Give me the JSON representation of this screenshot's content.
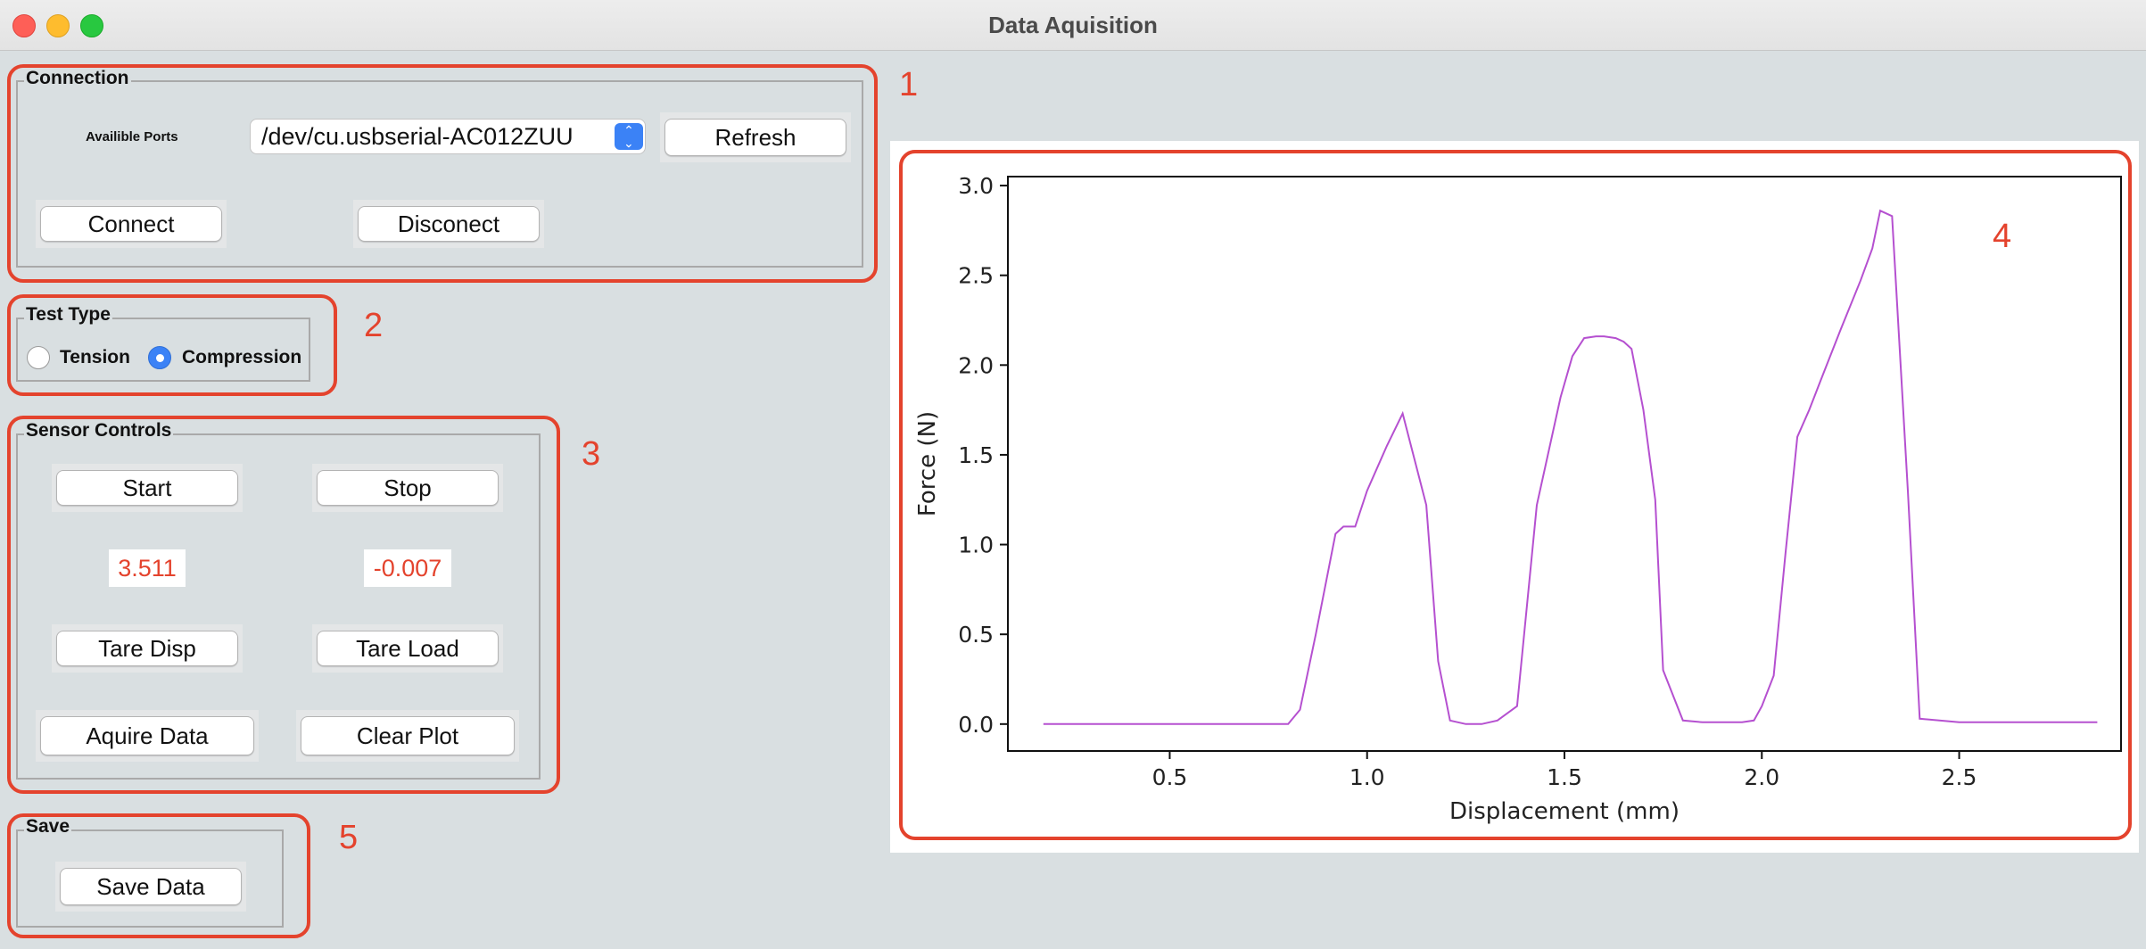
{
  "window": {
    "title": "Data Aquisition"
  },
  "annotations": [
    "1",
    "2",
    "3",
    "4",
    "5"
  ],
  "connection": {
    "title": "Connection",
    "ports_label": "Availible Ports",
    "port_value": "/dev/cu.usbserial-AC012ZUU",
    "refresh": "Refresh",
    "connect": "Connect",
    "disconnect": "Disconect"
  },
  "test_type": {
    "title": "Test Type",
    "options": [
      {
        "label": "Tension",
        "selected": false
      },
      {
        "label": "Compression",
        "selected": true
      }
    ]
  },
  "sensor": {
    "title": "Sensor Controls",
    "start": "Start",
    "stop": "Stop",
    "disp_value": "3.511",
    "load_value": "-0.007",
    "tare_disp": "Tare Disp",
    "tare_load": "Tare Load",
    "acquire": "Aquire Data",
    "clear": "Clear Plot"
  },
  "save": {
    "title": "Save",
    "save_data": "Save Data"
  },
  "colors": {
    "accent": "#3b82f6",
    "annotation": "#e4432d",
    "series": "#b550d0"
  },
  "chart_data": {
    "type": "line",
    "title": "",
    "xlabel": "Displacement (mm)",
    "ylabel": "Force (N)",
    "xlim": [
      0.09,
      2.91
    ],
    "ylim": [
      -0.15,
      3.05
    ],
    "xticks": [
      0.5,
      1.0,
      1.5,
      2.0,
      2.5
    ],
    "yticks": [
      0.0,
      0.5,
      1.0,
      1.5,
      2.0,
      2.5,
      3.0
    ],
    "tick_labels_x": [
      "0.5",
      "1.0",
      "1.5",
      "2.0",
      "2.5"
    ],
    "tick_labels_y": [
      "0.0",
      "0.5",
      "1.0",
      "1.5",
      "2.0",
      "2.5",
      "3.0"
    ],
    "grid": false,
    "series": [
      {
        "x": [
          0.18,
          0.5,
          0.8,
          0.83,
          0.87,
          0.92,
          0.94,
          0.97,
          1.0,
          1.05,
          1.09,
          1.15,
          1.18,
          1.21,
          1.25,
          1.29,
          1.33,
          1.38,
          1.43,
          1.49,
          1.52,
          1.55,
          1.58,
          1.6,
          1.63,
          1.65,
          1.67,
          1.7,
          1.73,
          1.75,
          1.8,
          1.85,
          1.9,
          1.95,
          1.98,
          2.0,
          2.03,
          2.06,
          2.09,
          2.12,
          2.15,
          2.2,
          2.25,
          2.28,
          2.3,
          2.33,
          2.37,
          2.4,
          2.5,
          2.6,
          2.7,
          2.85
        ],
        "y": [
          0.0,
          0.0,
          0.0,
          0.08,
          0.5,
          1.06,
          1.1,
          1.1,
          1.3,
          1.55,
          1.73,
          1.22,
          0.35,
          0.02,
          0.0,
          0.0,
          0.02,
          0.1,
          1.22,
          1.82,
          2.05,
          2.15,
          2.16,
          2.16,
          2.15,
          2.13,
          2.09,
          1.75,
          1.25,
          0.3,
          0.02,
          0.01,
          0.01,
          0.01,
          0.02,
          0.1,
          0.27,
          0.95,
          1.6,
          1.75,
          1.92,
          2.2,
          2.47,
          2.65,
          2.86,
          2.83,
          1.3,
          0.03,
          0.01,
          0.01,
          0.01,
          0.01
        ]
      }
    ]
  }
}
